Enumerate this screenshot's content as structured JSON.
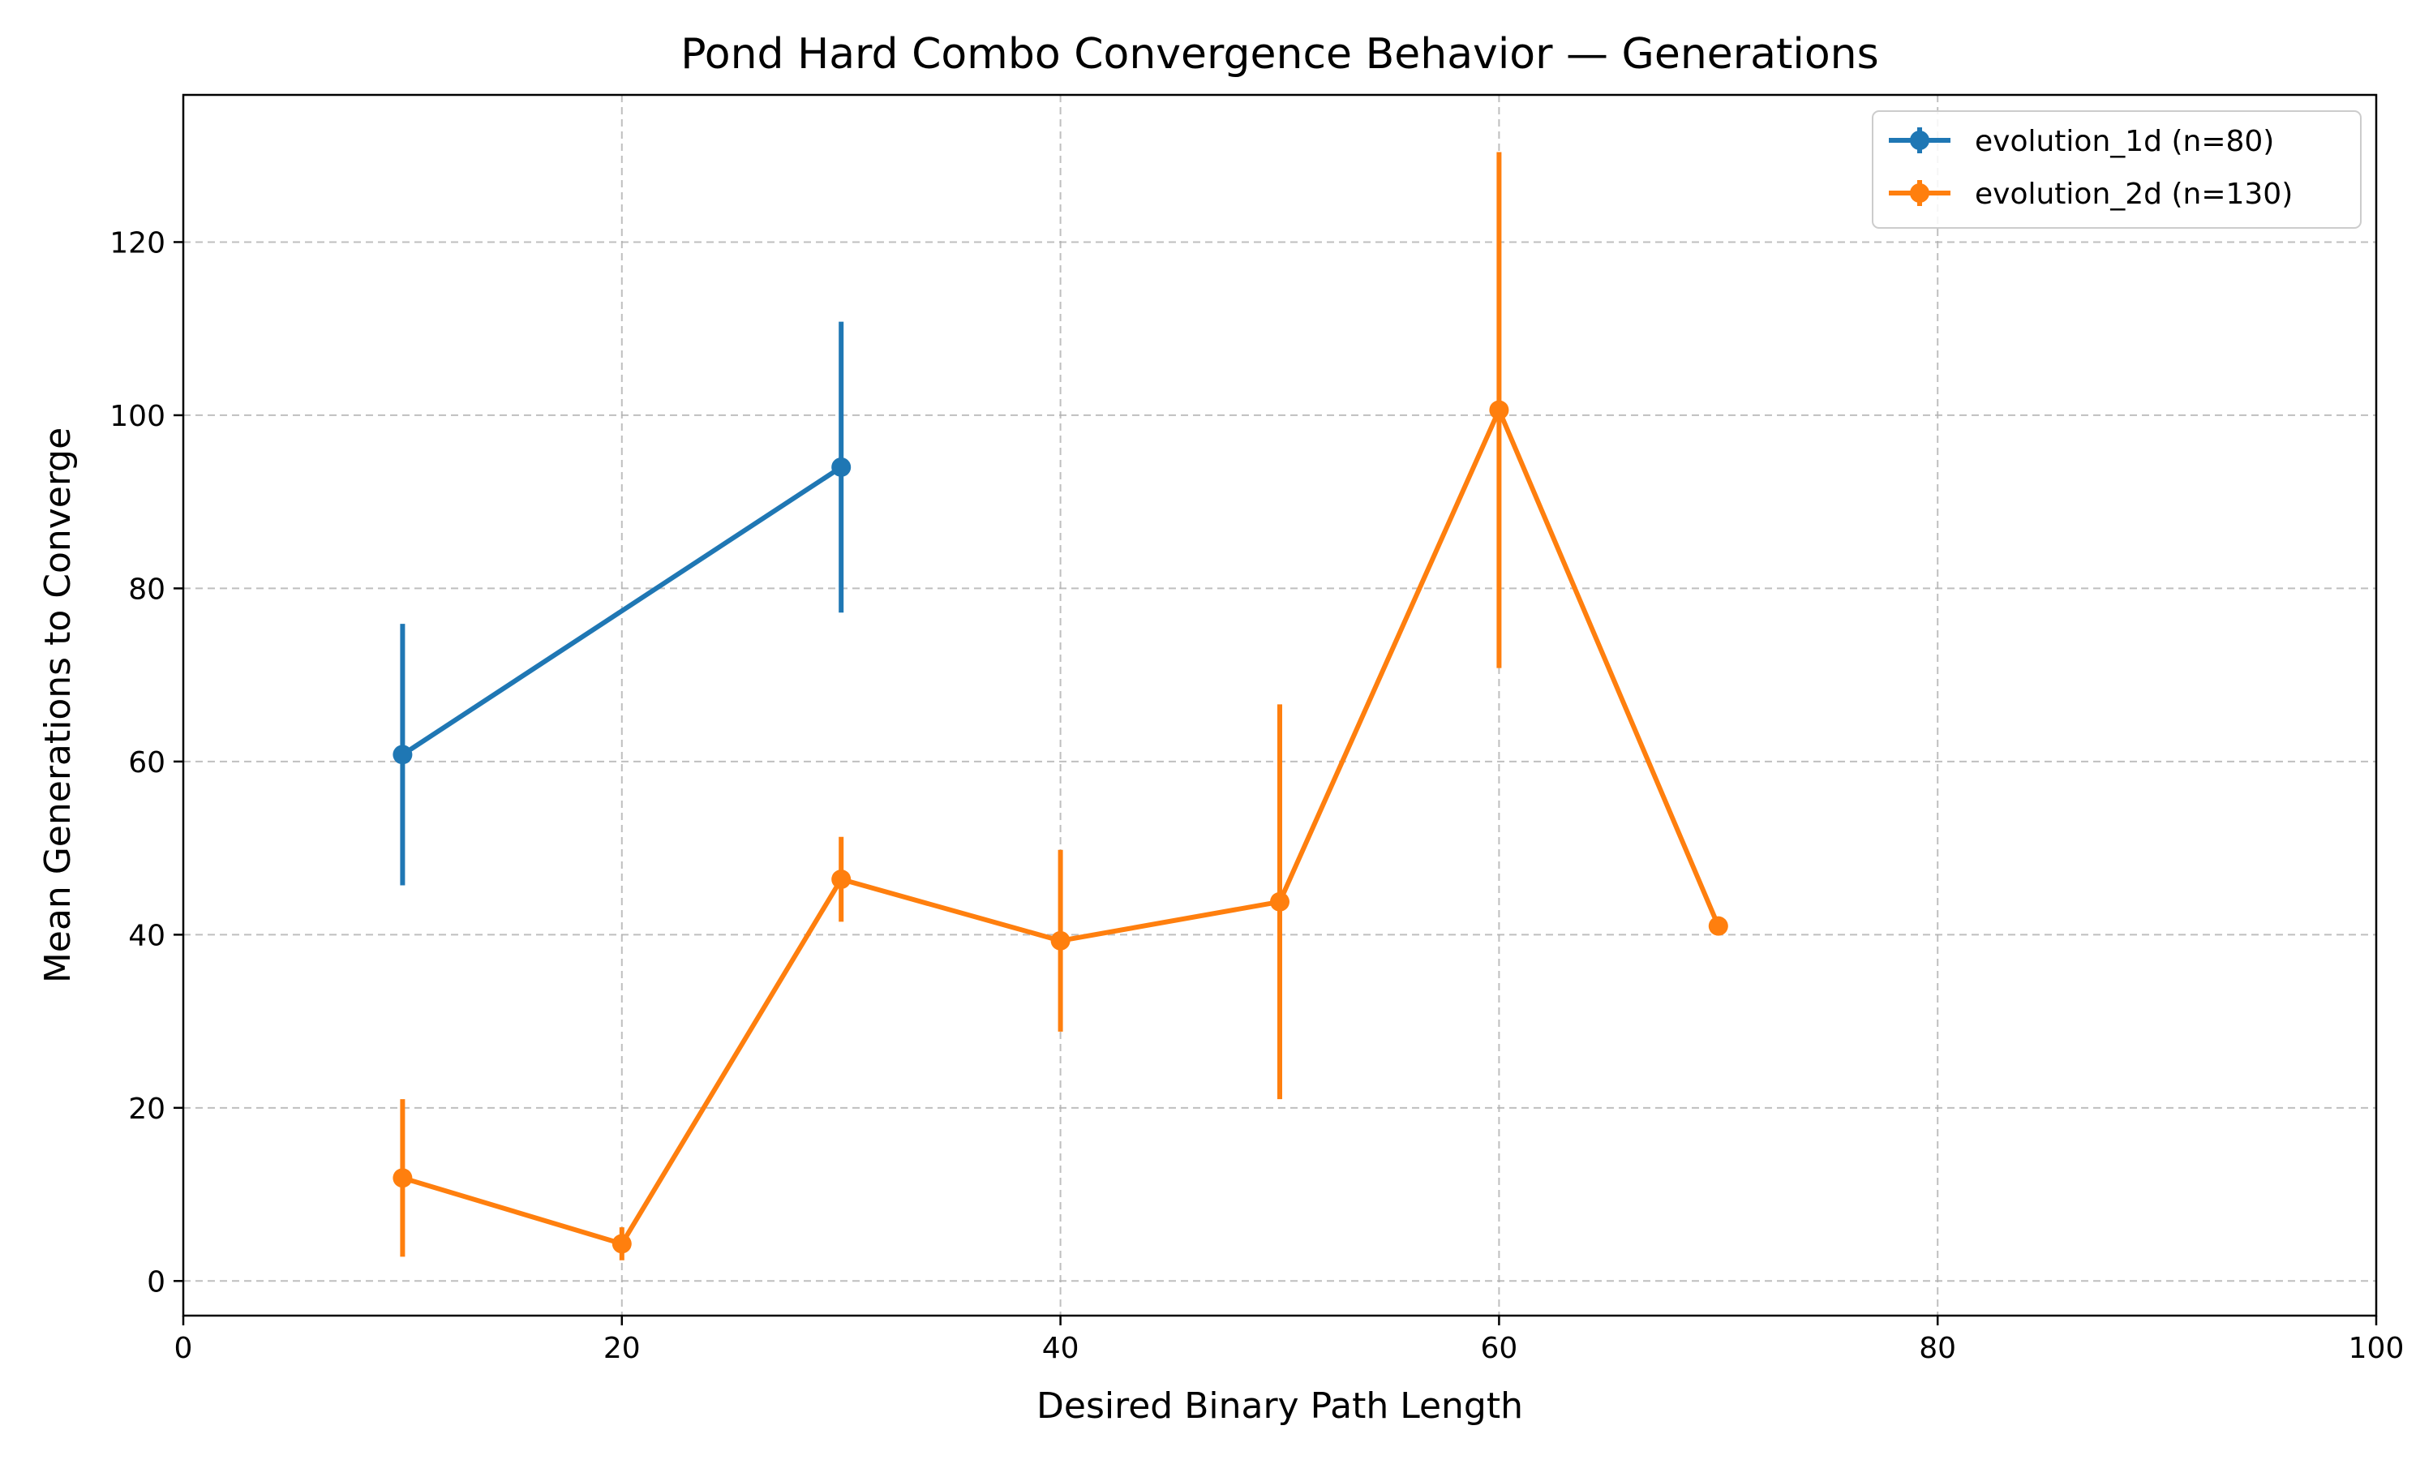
{
  "chart_data": {
    "type": "line",
    "title": "Pond Hard Combo Convergence Behavior — Generations",
    "xlabel": "Desired Binary Path Length",
    "ylabel": "Mean Generations to Converge",
    "xlim": [
      0,
      100
    ],
    "ylim": [
      -4,
      137
    ],
    "xticks": [
      0,
      20,
      40,
      60,
      80,
      100
    ],
    "yticks": [
      0,
      20,
      40,
      60,
      80,
      100,
      120
    ],
    "grid": true,
    "legend_position": "top-right",
    "series": [
      {
        "name": "evolution_1d (n=80)",
        "color": "#1f77b4",
        "x": [
          10,
          30
        ],
        "y": [
          60.8,
          94.0
        ],
        "err_low": [
          45.7,
          77.2
        ],
        "err_high": [
          75.9,
          110.8
        ]
      },
      {
        "name": "evolution_2d (n=130)",
        "color": "#ff7f0e",
        "x": [
          10,
          20,
          30,
          40,
          50,
          60,
          70
        ],
        "y": [
          11.9,
          4.3,
          46.4,
          39.3,
          43.8,
          100.6,
          41.0
        ],
        "err_low": [
          2.8,
          2.4,
          41.5,
          28.8,
          21.0,
          70.8,
          41.0
        ],
        "err_high": [
          21.0,
          6.2,
          51.3,
          49.8,
          66.6,
          130.4,
          41.0
        ]
      }
    ]
  }
}
